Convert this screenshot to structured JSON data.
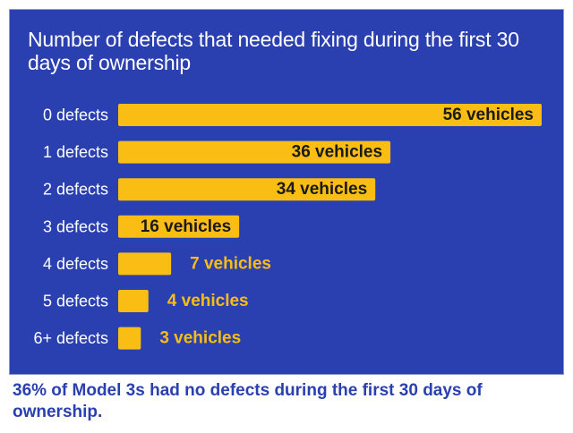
{
  "chart_data": {
    "type": "bar",
    "orientation": "horizontal",
    "title": "Number of defects that needed fixing during the first 30 days of ownership",
    "categories": [
      "0 defects",
      "1 defects",
      "2 defects",
      "3 defects",
      "4 defects",
      "5 defects",
      "6+ defects"
    ],
    "values": [
      56,
      36,
      34,
      16,
      7,
      4,
      3
    ],
    "data_labels": [
      "56 vehicles",
      "36 vehicles",
      "34 vehicles",
      "16 vehicles",
      "7 vehicles",
      "4 vehicles",
      "3 vehicles"
    ],
    "xlim": [
      0,
      56
    ],
    "grid": false,
    "legend": "none",
    "colors": {
      "background": "#2a40b1",
      "bar": "#f9bd14",
      "category_text": "#ffffff",
      "inside_label_text": "#1a1a1a",
      "outside_label_text": "#f9bd14"
    }
  },
  "footnote": "36% of Model 3s had no defects during the first 30 days of ownership."
}
